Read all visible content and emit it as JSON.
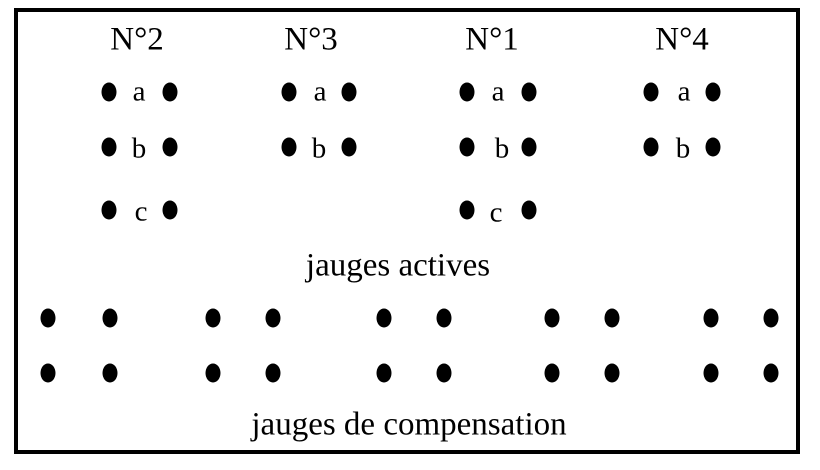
{
  "gauges": [
    {
      "title": "N°2",
      "letters": [
        "a",
        "b",
        "c"
      ]
    },
    {
      "title": "N°3",
      "letters": [
        "a",
        "b"
      ]
    },
    {
      "title": "N°1",
      "letters": [
        "a",
        "b",
        "c"
      ]
    },
    {
      "title": "N°4",
      "letters": [
        "a",
        "b"
      ]
    }
  ],
  "captions": {
    "active": "jauges actives",
    "compensation": "jauges de compensation"
  },
  "compensation_groups": 5,
  "compensation_rows": 2
}
